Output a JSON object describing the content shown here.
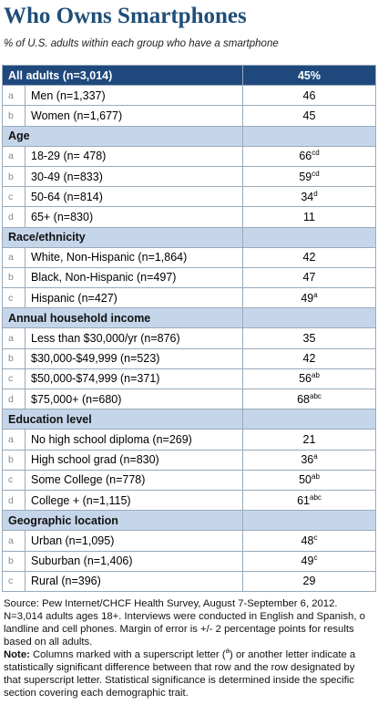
{
  "header": {
    "title": "Who Owns Smartphones",
    "subtitle": "% of U.S. adults within each group who have a smartphone"
  },
  "table": {
    "total": {
      "label": "All adults (n=3,014)",
      "value": "45%"
    },
    "groups": [
      {
        "title": null,
        "rows": [
          {
            "letter": "a",
            "label": "Men (n=1,337)",
            "value": "46",
            "sup": null
          },
          {
            "letter": "b",
            "label": "Women (n=1,677)",
            "value": "45",
            "sup": null
          }
        ]
      },
      {
        "title": "Age",
        "rows": [
          {
            "letter": "a",
            "label": "18-29 (n= 478)",
            "value": "66",
            "sup": "cd"
          },
          {
            "letter": "b",
            "label": "30-49 (n=833)",
            "value": "59",
            "sup": "cd"
          },
          {
            "letter": "c",
            "label": "50-64 (n=814)",
            "value": "34",
            "sup": "d"
          },
          {
            "letter": "d",
            "label": "65+ (n=830)",
            "value": "11",
            "sup": null
          }
        ]
      },
      {
        "title": "Race/ethnicity",
        "rows": [
          {
            "letter": "a",
            "label": "White, Non-Hispanic (n=1,864)",
            "value": "42",
            "sup": null
          },
          {
            "letter": "b",
            "label": "Black, Non-Hispanic (n=497)",
            "value": "47",
            "sup": null
          },
          {
            "letter": "c",
            "label": "Hispanic (n=427)",
            "value": "49",
            "sup": "a"
          }
        ]
      },
      {
        "title": "Annual household income",
        "rows": [
          {
            "letter": "a",
            "label": "Less than $30,000/yr (n=876)",
            "value": "35",
            "sup": null
          },
          {
            "letter": "b",
            "label": "$30,000-$49,999 (n=523)",
            "value": "42",
            "sup": null
          },
          {
            "letter": "c",
            "label": "$50,000-$74,999 (n=371)",
            "value": "56",
            "sup": "ab"
          },
          {
            "letter": "d",
            "label": "$75,000+ (n=680)",
            "value": "68",
            "sup": "abc"
          }
        ]
      },
      {
        "title": "Education level",
        "rows": [
          {
            "letter": "a",
            "label": "No high school diploma (n=269)",
            "value": "21",
            "sup": null
          },
          {
            "letter": "b",
            "label": "High school grad (n=830)",
            "value": "36",
            "sup": "a"
          },
          {
            "letter": "c",
            "label": "Some College (n=778)",
            "value": "50",
            "sup": "ab"
          },
          {
            "letter": "d",
            "label": "College + (n=1,115)",
            "value": "61",
            "sup": "abc"
          }
        ]
      },
      {
        "title": "Geographic location",
        "rows": [
          {
            "letter": "a",
            "label": "Urban (n=1,095)",
            "value": "48",
            "sup": "c"
          },
          {
            "letter": "b",
            "label": "Suburban (n=1,406)",
            "value": "49",
            "sup": "c"
          },
          {
            "letter": "c",
            "label": "Rural (n=396)",
            "value": "29",
            "sup": null
          }
        ]
      }
    ]
  },
  "footer": {
    "source": [
      "Source: Pew Internet/CHCF Health Survey, August 7-September 6, 2012.",
      "N=3,014 adults ages 18+. Interviews were conducted in English and Spanish, o",
      "landline and cell phones.  Margin of error is +/- 2 percentage points for results",
      "based on all adults."
    ],
    "note_label": "Note:",
    "note_first": [
      "Columns marked with a superscript letter (",
      "a",
      ") or another letter indicate a"
    ],
    "note": [
      "statistically significant difference between that row and the row designated by",
      "that superscript letter. Statistical significance is determined inside the specific",
      "section covering each demographic trait."
    ]
  }
}
